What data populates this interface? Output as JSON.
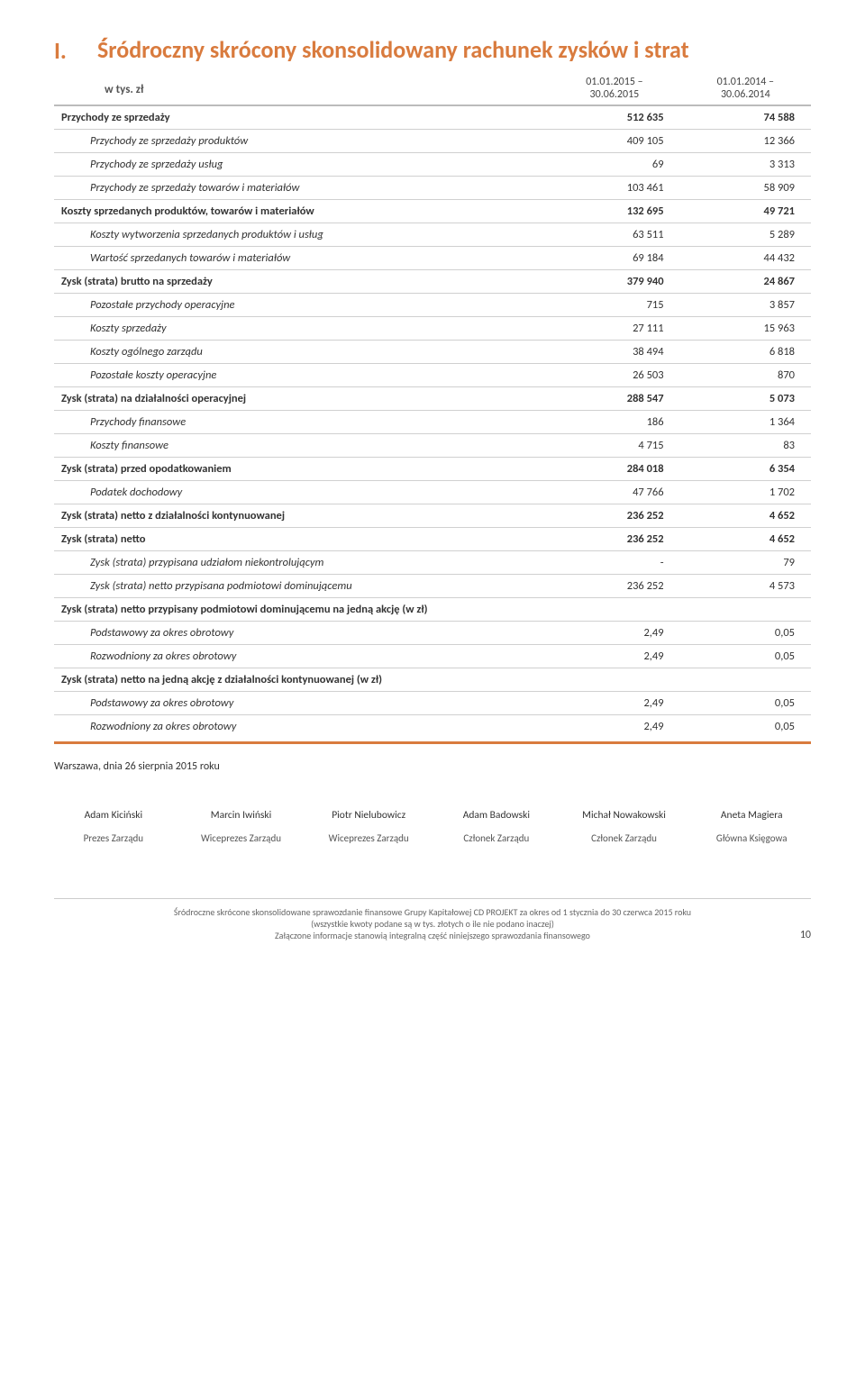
{
  "title_num": "I.",
  "title_text": "Śródroczny skrócony skonsolidowany rachunek zysków i strat",
  "sublabel": "w tys. zł",
  "col1_a": "01.01.2015 –",
  "col1_b": "30.06.2015",
  "col2_a": "01.01.2014 –",
  "col2_b": "30.06.2014",
  "rows": [
    {
      "l": "Przychody ze sprzedaży",
      "v1": "512 635",
      "v2": "74 588",
      "bold": true,
      "indent": false,
      "border": "heavy"
    },
    {
      "l": "Przychody ze sprzedaży produktów",
      "v1": "409 105",
      "v2": "12 366",
      "bold": false,
      "indent": true,
      "border": "light"
    },
    {
      "l": "Przychody ze sprzedaży usług",
      "v1": "69",
      "v2": "3 313",
      "bold": false,
      "indent": true,
      "border": "light"
    },
    {
      "l": "Przychody ze sprzedaży towarów i materiałów",
      "v1": "103 461",
      "v2": "58 909",
      "bold": false,
      "indent": true,
      "border": "light"
    },
    {
      "l": "Koszty sprzedanych produktów, towarów i materiałów",
      "v1": "132 695",
      "v2": "49 721",
      "bold": true,
      "indent": false,
      "border": "light"
    },
    {
      "l": "Koszty wytworzenia sprzedanych produktów i usług",
      "v1": "63 511",
      "v2": "5 289",
      "bold": false,
      "indent": true,
      "border": "light"
    },
    {
      "l": "Wartość sprzedanych towarów i materiałów",
      "v1": "69 184",
      "v2": "44 432",
      "bold": false,
      "indent": true,
      "border": "light"
    },
    {
      "l": "Zysk (strata) brutto na sprzedaży",
      "v1": "379 940",
      "v2": "24 867",
      "bold": true,
      "indent": false,
      "border": "light"
    },
    {
      "l": "Pozostałe przychody operacyjne",
      "v1": "715",
      "v2": "3 857",
      "bold": false,
      "indent": true,
      "border": "light"
    },
    {
      "l": "Koszty sprzedaży",
      "v1": "27 111",
      "v2": "15 963",
      "bold": false,
      "indent": true,
      "border": "light"
    },
    {
      "l": "Koszty ogólnego zarządu",
      "v1": "38 494",
      "v2": "6 818",
      "bold": false,
      "indent": true,
      "border": "light"
    },
    {
      "l": "Pozostałe koszty operacyjne",
      "v1": "26 503",
      "v2": "870",
      "bold": false,
      "indent": true,
      "border": "light"
    },
    {
      "l": "Zysk (strata) na działalności operacyjnej",
      "v1": "288 547",
      "v2": "5 073",
      "bold": true,
      "indent": false,
      "border": "light"
    },
    {
      "l": "Przychody finansowe",
      "v1": "186",
      "v2": "1 364",
      "bold": false,
      "indent": true,
      "border": "light"
    },
    {
      "l": "Koszty finansowe",
      "v1": "4 715",
      "v2": "83",
      "bold": false,
      "indent": true,
      "border": "light"
    },
    {
      "l": "Zysk (strata) przed opodatkowaniem",
      "v1": "284 018",
      "v2": "6 354",
      "bold": true,
      "indent": false,
      "border": "light"
    },
    {
      "l": "Podatek dochodowy",
      "v1": "47 766",
      "v2": "1 702",
      "bold": false,
      "indent": true,
      "border": "light"
    },
    {
      "l": "Zysk (strata) netto z działalności kontynuowanej",
      "v1": "236 252",
      "v2": "4 652",
      "bold": true,
      "indent": false,
      "border": "light"
    },
    {
      "l": "Zysk (strata) netto",
      "v1": "236 252",
      "v2": "4 652",
      "bold": true,
      "indent": false,
      "border": "light"
    },
    {
      "l": "Zysk (strata) przypisana udziałom niekontrolującym",
      "v1": "-",
      "v2": "79",
      "bold": false,
      "indent": true,
      "border": "light"
    },
    {
      "l": "Zysk (strata) netto przypisana podmiotowi dominującemu",
      "v1": "236 252",
      "v2": "4 573",
      "bold": false,
      "indent": true,
      "border": "light"
    },
    {
      "l": "Zysk (strata) netto przypisany podmiotowi dominującemu na jedną akcję (w zł)",
      "v1": "",
      "v2": "",
      "bold": true,
      "indent": false,
      "border": "light"
    },
    {
      "l": "Podstawowy za okres obrotowy",
      "v1": "2,49",
      "v2": "0,05",
      "bold": false,
      "indent": true,
      "border": "light"
    },
    {
      "l": "Rozwodniony za okres obrotowy",
      "v1": "2,49",
      "v2": "0,05",
      "bold": false,
      "indent": true,
      "border": "light"
    },
    {
      "l": "Zysk (strata) netto na jedną akcję z działalności kontynuowanej (w zł)",
      "v1": "",
      "v2": "",
      "bold": true,
      "indent": false,
      "border": "light"
    },
    {
      "l": "Podstawowy za okres obrotowy",
      "v1": "2,49",
      "v2": "0,05",
      "bold": false,
      "indent": true,
      "border": "light"
    },
    {
      "l": "Rozwodniony za okres obrotowy",
      "v1": "2,49",
      "v2": "0,05",
      "bold": false,
      "indent": true,
      "border": "light"
    }
  ],
  "warsaw": "Warszawa, dnia 26 sierpnia 2015 roku",
  "sigs": [
    {
      "name": "Adam Kiciński",
      "role": "Prezes Zarządu"
    },
    {
      "name": "Marcin Iwiński",
      "role": "Wiceprezes Zarządu"
    },
    {
      "name": "Piotr Nielubowicz",
      "role": "Wiceprezes Zarządu"
    },
    {
      "name": "Adam Badowski",
      "role": "Członek Zarządu"
    },
    {
      "name": "Michał Nowakowski",
      "role": "Członek Zarządu"
    },
    {
      "name": "Aneta Magiera",
      "role": "Główna Księgowa"
    }
  ],
  "footer1": "Śródroczne skrócone skonsolidowane sprawozdanie finansowe Grupy Kapitałowej CD PROJEKT za okres od 1 stycznia do 30 czerwca 2015 roku",
  "footer2": "(wszystkie kwoty podane są w tys. złotych o ile nie podano inaczej)",
  "footer3": "Załączone informacje stanowią integralną część niniejszego sprawozdania finansowego",
  "pagenum": "10",
  "colors": {
    "accent": "#d97b3e",
    "text": "#333",
    "border": "#d0d0d0"
  }
}
